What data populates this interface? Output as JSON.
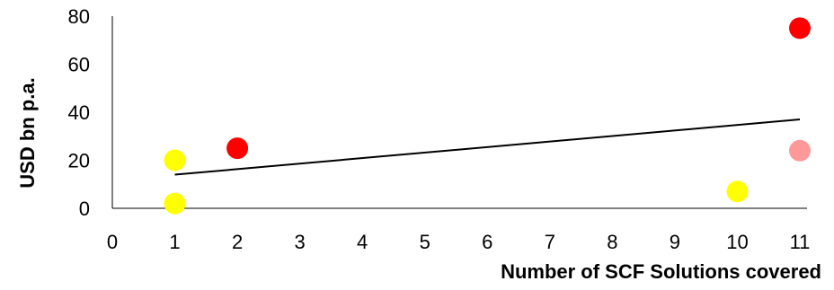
{
  "chart_data": {
    "type": "scatter",
    "title": "",
    "xlabel": "Number of SCF Solutions covered",
    "ylabel": "USD bn p.a.",
    "xlim": [
      0,
      11
    ],
    "ylim": [
      0,
      80
    ],
    "x_ticks": [
      0,
      1,
      2,
      3,
      4,
      5,
      6,
      7,
      8,
      9,
      10,
      11
    ],
    "y_ticks": [
      0,
      20,
      40,
      60,
      80
    ],
    "grid": false,
    "legend": "none",
    "points": [
      {
        "x": 1,
        "y": 20,
        "color": "#ffff00"
      },
      {
        "x": 1,
        "y": 2,
        "color": "#ffff00"
      },
      {
        "x": 2,
        "y": 25,
        "color": "#ff0000"
      },
      {
        "x": 10,
        "y": 7,
        "color": "#ffff00"
      },
      {
        "x": 11,
        "y": 75,
        "color": "#ff0000"
      },
      {
        "x": 11,
        "y": 24,
        "color": "#ff9999"
      }
    ],
    "trendline": {
      "type": "linear",
      "from": {
        "x": 1,
        "y": 14
      },
      "to": {
        "x": 11,
        "y": 37
      },
      "color": "#000000"
    }
  }
}
